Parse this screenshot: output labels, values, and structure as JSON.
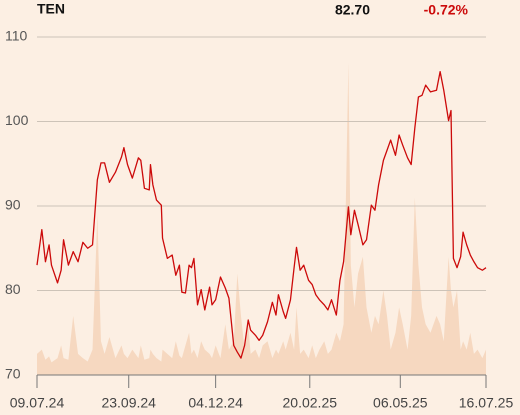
{
  "chart_data": {
    "type": "line",
    "title": "TEN",
    "price": "82.70",
    "change": "-0.72%",
    "x": [
      "2024-07-09",
      "2024-07-13",
      "2024-07-16",
      "2024-07-19",
      "2024-07-21",
      "2024-07-26",
      "2024-07-29",
      "2024-07-31",
      "2024-08-04",
      "2024-08-08",
      "2024-08-12",
      "2024-08-16",
      "2024-08-20",
      "2024-08-24",
      "2024-08-28",
      "2024-08-31",
      "2024-09-03",
      "2024-09-07",
      "2024-09-12",
      "2024-09-17",
      "2024-09-19",
      "2024-09-22",
      "2024-09-26",
      "2024-10-01",
      "2024-10-03",
      "2024-10-06",
      "2024-10-10",
      "2024-10-11",
      "2024-10-13",
      "2024-10-16",
      "2024-10-20",
      "2024-10-21",
      "2024-10-25",
      "2024-10-29",
      "2024-11-01",
      "2024-11-04",
      "2024-11-06",
      "2024-11-09",
      "2024-11-12",
      "2024-11-14",
      "2024-11-16",
      "2024-11-19",
      "2024-11-22",
      "2024-11-25",
      "2024-11-29",
      "2024-12-01",
      "2024-12-04",
      "2024-12-08",
      "2024-12-12",
      "2024-12-15",
      "2024-12-19",
      "2024-12-22",
      "2024-12-25",
      "2024-12-28",
      "2024-12-31",
      "2025-01-02",
      "2025-01-06",
      "2025-01-09",
      "2025-01-12",
      "2025-01-16",
      "2025-01-20",
      "2025-01-23",
      "2025-01-25",
      "2025-01-29",
      "2025-01-31",
      "2025-02-04",
      "2025-02-07",
      "2025-02-09",
      "2025-02-12",
      "2025-02-15",
      "2025-02-19",
      "2025-02-22",
      "2025-02-25",
      "2025-02-28",
      "2025-03-04",
      "2025-03-07",
      "2025-03-10",
      "2025-03-14",
      "2025-03-17",
      "2025-03-20",
      "2025-03-24",
      "2025-03-26",
      "2025-03-29",
      "2025-04-01",
      "2025-04-05",
      "2025-04-08",
      "2025-04-12",
      "2025-04-15",
      "2025-04-18",
      "2025-04-22",
      "2025-04-25",
      "2025-04-28",
      "2025-05-02",
      "2025-05-05",
      "2025-05-08",
      "2025-05-12",
      "2025-05-15",
      "2025-05-18",
      "2025-05-21",
      "2025-05-24",
      "2025-05-27",
      "2025-05-31",
      "2025-06-05",
      "2025-06-08",
      "2025-06-11",
      "2025-06-15",
      "2025-06-17",
      "2025-06-19",
      "2025-06-22",
      "2025-06-25",
      "2025-06-27",
      "2025-06-30",
      "2025-07-03",
      "2025-07-06",
      "2025-07-09",
      "2025-07-13",
      "2025-07-16"
    ],
    "series": [
      {
        "type": "line",
        "color": "#cc0a0a",
        "values": [
          83.0,
          87.2,
          83.4,
          85.4,
          83.0,
          80.9,
          82.4,
          86.0,
          83.0,
          84.6,
          83.4,
          85.7,
          85.0,
          85.4,
          93.1,
          95.1,
          95.1,
          92.8,
          94.0,
          95.8,
          96.9,
          94.9,
          93.3,
          95.7,
          95.4,
          92.1,
          91.9,
          94.9,
          92.5,
          90.7,
          90.1,
          86.2,
          83.8,
          84.2,
          81.8,
          83.0,
          79.8,
          79.7,
          83.0,
          82.7,
          83.8,
          78.3,
          80.1,
          77.7,
          80.4,
          78.3,
          78.9,
          81.6,
          80.3,
          79.1,
          73.5,
          72.7,
          72.0,
          73.5,
          76.5,
          75.3,
          74.7,
          74.1,
          74.7,
          76.3,
          78.6,
          77.1,
          79.5,
          77.5,
          76.7,
          78.9,
          82.7,
          85.1,
          82.4,
          83.0,
          81.2,
          80.7,
          79.5,
          78.9,
          78.3,
          77.7,
          78.9,
          77.1,
          81.2,
          83.4,
          89.9,
          86.6,
          89.5,
          87.8,
          85.4,
          86.0,
          90.1,
          89.5,
          92.5,
          95.4,
          96.6,
          97.8,
          96.0,
          98.4,
          97.2,
          95.7,
          94.9,
          99.2,
          102.9,
          103.1,
          104.3,
          103.5,
          103.7,
          105.9,
          103.7,
          100.1,
          101.3,
          83.8,
          82.7,
          84.0,
          86.9,
          85.4,
          84.2,
          83.4,
          82.7,
          82.4,
          82.7
        ]
      },
      {
        "type": "area",
        "color": "#f6d8c0",
        "values": [
          72.5,
          73,
          71.8,
          72.2,
          71.5,
          72,
          73.5,
          72,
          71.8,
          77,
          72.5,
          72,
          71.6,
          73,
          89,
          74,
          72.5,
          74.5,
          72,
          73.5,
          72.5,
          72,
          73,
          72,
          73.5,
          71.8,
          72,
          73,
          72.5,
          72,
          71.6,
          73,
          72.5,
          72,
          74,
          72.3,
          72,
          73.5,
          75,
          72.5,
          73,
          72,
          74,
          73,
          72.5,
          72,
          73.5,
          72,
          76,
          73,
          74,
          82,
          77,
          73,
          76,
          72.5,
          73,
          72,
          73.5,
          74,
          72,
          73,
          72.5,
          74,
          73,
          75,
          73,
          78,
          72.5,
          73,
          72,
          73.5,
          72,
          73,
          74,
          72.5,
          73,
          75,
          74,
          76,
          107,
          83,
          78,
          82,
          84,
          78,
          75,
          77,
          76,
          80,
          77,
          73,
          75,
          78,
          76,
          73,
          77,
          91,
          83,
          78,
          76,
          75,
          77,
          76,
          74,
          84,
          80,
          78,
          80,
          73,
          74,
          73,
          75,
          72.5,
          73,
          72,
          73
        ]
      }
    ],
    "xlim": [
      "2024-07-09",
      "2025-07-16"
    ],
    "xticks": [
      {
        "value": "2024-07-09",
        "label": "09.07.24"
      },
      {
        "value": "2024-09-23",
        "label": "23.09.24"
      },
      {
        "value": "2024-12-04",
        "label": "04.12.24"
      },
      {
        "value": "2025-02-20",
        "label": "20.02.25"
      },
      {
        "value": "2025-05-06",
        "label": "06.05.25"
      },
      {
        "value": "2025-07-16",
        "label": "16.07.25"
      }
    ],
    "ylim": [
      70,
      110
    ],
    "yticks": [
      70,
      80,
      90,
      100,
      110
    ],
    "grid": true
  }
}
